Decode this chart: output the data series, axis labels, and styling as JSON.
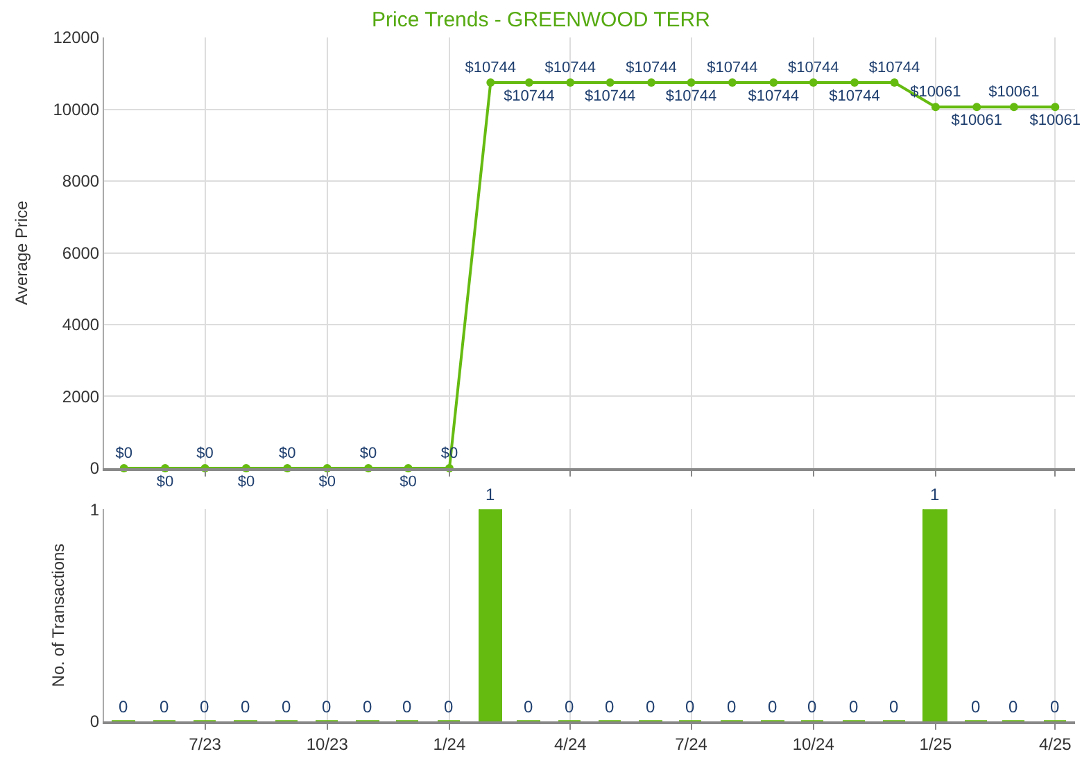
{
  "chart_data": [
    {
      "type": "line",
      "title": "Price Trends - GREENWOOD TERR",
      "ylabel": "Average Price",
      "x": [
        "2023-05",
        "2023-06",
        "2023-07",
        "2023-08",
        "2023-09",
        "2023-10",
        "2023-11",
        "2023-12",
        "2024-01",
        "2024-02",
        "2024-03",
        "2024-04",
        "2024-05",
        "2024-06",
        "2024-07",
        "2024-08",
        "2024-09",
        "2024-10",
        "2024-11",
        "2024-12",
        "2025-01",
        "2025-02",
        "2025-03",
        "2025-04"
      ],
      "series": [
        {
          "color": "#66bb11",
          "values": [
            0,
            0,
            0,
            0,
            0,
            0,
            0,
            0,
            0,
            10744,
            10744,
            10744,
            10744,
            10744,
            10744,
            10744,
            10744,
            10744,
            10744,
            10744,
            10061,
            10061,
            10061,
            10061
          ],
          "value_labels": [
            "$0",
            "$0",
            "$0",
            "$0",
            "$0",
            "$0",
            "$0",
            "$0",
            "$0",
            "$10744",
            "$10744",
            "$10744",
            "$10744",
            "$10744",
            "$10744",
            "$10744",
            "$10744",
            "$10744",
            "$10744",
            "$10744",
            "$10061",
            "$10061",
            "$10061",
            "$10061"
          ]
        }
      ],
      "xlim": [
        "2023-04-16",
        "2025-04-16"
      ],
      "xticks": [
        {
          "value": "2023-07",
          "label": null
        },
        {
          "value": "2023-10",
          "label": null
        },
        {
          "value": "2024-01",
          "label": null
        },
        {
          "value": "2024-04",
          "label": null
        },
        {
          "value": "2024-07",
          "label": null
        },
        {
          "value": "2024-10",
          "label": null
        },
        {
          "value": "2025-01",
          "label": null
        },
        {
          "value": "2025-04",
          "label": null
        }
      ],
      "ylim": [
        0,
        12000
      ],
      "yticks": [
        0,
        2000,
        4000,
        6000,
        8000,
        10000,
        12000
      ],
      "tick_labels": "y",
      "grid": true,
      "marker": "circle",
      "line_style": "solid"
    },
    {
      "type": "bar",
      "ylabel": "No. of Transactions",
      "x": [
        "2023-05",
        "2023-06",
        "2023-07",
        "2023-08",
        "2023-09",
        "2023-10",
        "2023-11",
        "2023-12",
        "2024-01",
        "2024-02",
        "2024-03",
        "2024-04",
        "2024-05",
        "2024-06",
        "2024-07",
        "2024-08",
        "2024-09",
        "2024-10",
        "2024-11",
        "2024-12",
        "2025-01",
        "2025-02",
        "2025-03",
        "2025-04"
      ],
      "series": [
        {
          "color": "#66bb11",
          "values": [
            0,
            0,
            0,
            0,
            0,
            0,
            0,
            0,
            0,
            1,
            0,
            0,
            0,
            0,
            0,
            0,
            0,
            0,
            0,
            0,
            1,
            0,
            0,
            0
          ]
        }
      ],
      "data_labels": true,
      "xlim": [
        "2023-04-16",
        "2025-04-16"
      ],
      "xticks": [
        {
          "value": "2023-07",
          "label": "7/23"
        },
        {
          "value": "2023-10",
          "label": "10/23"
        },
        {
          "value": "2024-01",
          "label": "1/24"
        },
        {
          "value": "2024-04",
          "label": "4/24"
        },
        {
          "value": "2024-07",
          "label": "7/24"
        },
        {
          "value": "2024-10",
          "label": "10/24"
        },
        {
          "value": "2025-01",
          "label": "1/25"
        },
        {
          "value": "2025-04",
          "label": "4/25"
        }
      ],
      "ylim": [
        0,
        1
      ],
      "yticks": [
        0,
        1
      ],
      "grid": true
    }
  ]
}
